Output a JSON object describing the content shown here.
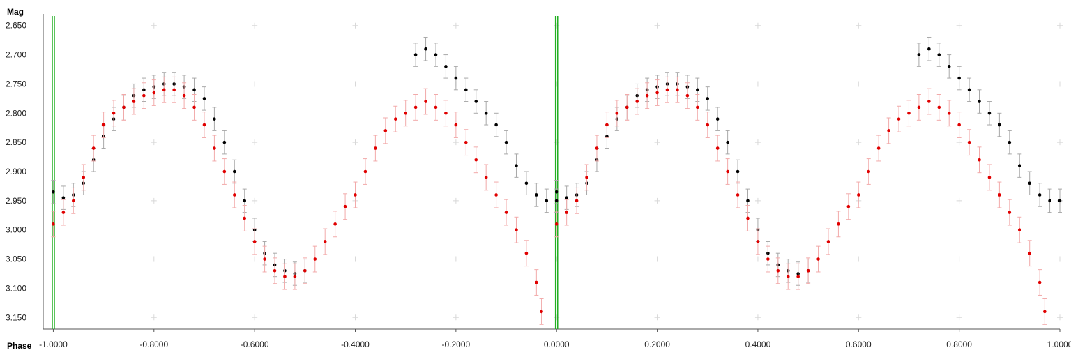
{
  "chart_data": {
    "type": "scatter",
    "ylabel": "Mag",
    "xlabel": "Phase",
    "xlim": [
      -1.02,
      1.0
    ],
    "ylim": [
      2.63,
      3.17
    ],
    "y_inverted": true,
    "grid": "cross markers",
    "y_ticks": [
      "2.650",
      "2.700",
      "2.750",
      "2.800",
      "2.850",
      "2.900",
      "2.950",
      "3.000",
      "3.050",
      "3.100",
      "3.150"
    ],
    "y_tick_values": [
      2.65,
      2.7,
      2.75,
      2.8,
      2.85,
      2.9,
      2.95,
      3.0,
      3.05,
      3.1,
      3.15
    ],
    "x_ticks": [
      "-1.0000",
      "-0.8000",
      "-0.6000",
      "-0.4000",
      "-0.2000",
      "0.0000",
      "0.2000",
      "0.4000",
      "0.6000",
      "0.8000",
      "1.0000"
    ],
    "x_tick_values": [
      -1.0,
      -0.8,
      -0.6,
      -0.4,
      -0.2,
      0.0,
      0.2,
      0.4,
      0.6,
      0.8,
      1.0
    ],
    "marker_lines": [
      -1.0,
      0.0
    ],
    "series": [
      {
        "color": "#000000",
        "error_color": "#a8a8a8",
        "error_bar": 0.02,
        "points": [
          [
            0.0,
            2.935
          ],
          [
            0.02,
            2.945
          ],
          [
            0.04,
            2.94
          ],
          [
            0.06,
            2.92
          ],
          [
            0.08,
            2.88
          ],
          [
            0.1,
            2.84
          ],
          [
            0.12,
            2.81
          ],
          [
            0.14,
            2.79
          ],
          [
            0.16,
            2.77
          ],
          [
            0.18,
            2.76
          ],
          [
            0.2,
            2.755
          ],
          [
            0.22,
            2.75
          ],
          [
            0.24,
            2.75
          ],
          [
            0.26,
            2.755
          ],
          [
            0.28,
            2.76
          ],
          [
            0.3,
            2.775
          ],
          [
            0.32,
            2.81
          ],
          [
            0.34,
            2.85
          ],
          [
            0.36,
            2.9
          ],
          [
            0.38,
            2.95
          ],
          [
            0.4,
            3.0
          ],
          [
            0.42,
            3.04
          ],
          [
            0.44,
            3.06
          ],
          [
            0.46,
            3.07
          ],
          [
            0.48,
            3.075
          ],
          [
            0.5,
            3.07
          ],
          [
            0.72,
            2.7
          ],
          [
            0.74,
            2.69
          ],
          [
            0.76,
            2.7
          ],
          [
            0.78,
            2.72
          ],
          [
            0.8,
            2.74
          ],
          [
            0.82,
            2.76
          ],
          [
            0.84,
            2.78
          ],
          [
            0.86,
            2.8
          ],
          [
            0.88,
            2.82
          ],
          [
            0.9,
            2.85
          ],
          [
            0.92,
            2.89
          ],
          [
            0.94,
            2.92
          ],
          [
            0.96,
            2.94
          ],
          [
            0.98,
            2.95
          ],
          [
            1.0,
            2.95
          ]
        ]
      },
      {
        "color": "#e00000",
        "error_color": "#f2aaaa",
        "error_bar": 0.022,
        "points": [
          [
            0.0,
            2.99
          ],
          [
            0.02,
            2.97
          ],
          [
            0.04,
            2.95
          ],
          [
            0.06,
            2.91
          ],
          [
            0.08,
            2.86
          ],
          [
            0.1,
            2.82
          ],
          [
            0.12,
            2.8
          ],
          [
            0.14,
            2.79
          ],
          [
            0.16,
            2.78
          ],
          [
            0.18,
            2.77
          ],
          [
            0.2,
            2.765
          ],
          [
            0.22,
            2.76
          ],
          [
            0.24,
            2.76
          ],
          [
            0.26,
            2.77
          ],
          [
            0.28,
            2.79
          ],
          [
            0.3,
            2.82
          ],
          [
            0.32,
            2.86
          ],
          [
            0.34,
            2.9
          ],
          [
            0.36,
            2.94
          ],
          [
            0.38,
            2.98
          ],
          [
            0.4,
            3.02
          ],
          [
            0.42,
            3.05
          ],
          [
            0.44,
            3.07
          ],
          [
            0.46,
            3.08
          ],
          [
            0.48,
            3.08
          ],
          [
            0.5,
            3.07
          ],
          [
            0.52,
            3.05
          ],
          [
            0.54,
            3.02
          ],
          [
            0.56,
            2.99
          ],
          [
            0.58,
            2.96
          ],
          [
            0.6,
            2.94
          ],
          [
            0.62,
            2.9
          ],
          [
            0.64,
            2.86
          ],
          [
            0.66,
            2.83
          ],
          [
            0.68,
            2.81
          ],
          [
            0.7,
            2.8
          ],
          [
            0.72,
            2.79
          ],
          [
            0.74,
            2.78
          ],
          [
            0.76,
            2.79
          ],
          [
            0.78,
            2.8
          ],
          [
            0.8,
            2.82
          ],
          [
            0.82,
            2.85
          ],
          [
            0.84,
            2.88
          ],
          [
            0.86,
            2.91
          ],
          [
            0.88,
            2.94
          ],
          [
            0.9,
            2.97
          ],
          [
            0.92,
            3.0
          ],
          [
            0.94,
            3.04
          ],
          [
            0.96,
            3.09
          ],
          [
            0.97,
            3.14
          ]
        ]
      }
    ]
  }
}
